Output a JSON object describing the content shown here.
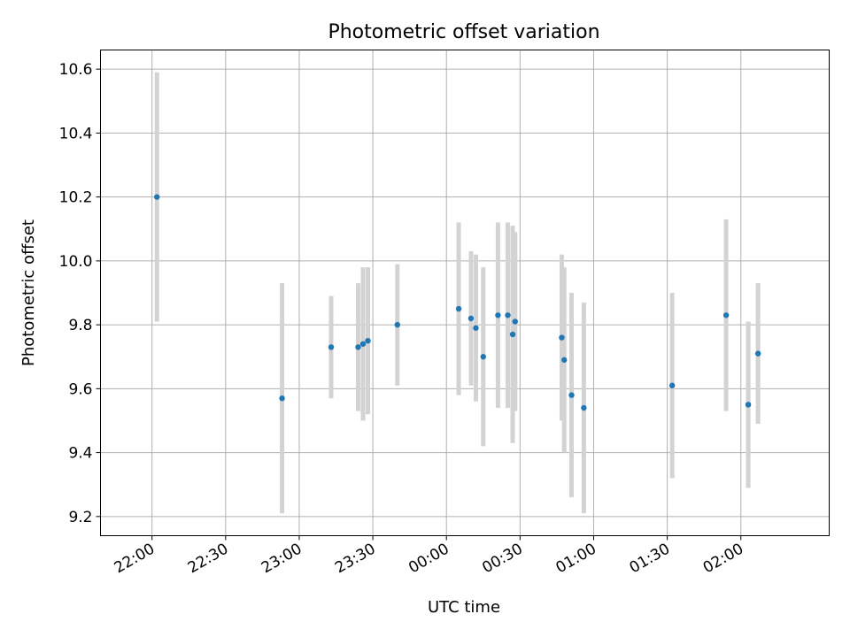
{
  "chart_data": {
    "type": "scatter",
    "title": "Photometric offset variation",
    "xlabel": "UTC time",
    "ylabel": "Photometric offset",
    "x_is_time": true,
    "xlim": [
      "21:39",
      "02:36"
    ],
    "ylim": [
      9.14,
      10.66
    ],
    "x_ticks": [
      "22:00",
      "22:30",
      "23:00",
      "23:30",
      "00:00",
      "00:30",
      "01:00",
      "01:30",
      "02:00"
    ],
    "y_ticks": [
      "9.2",
      "9.4",
      "9.6",
      "9.8",
      "10.0",
      "10.2",
      "10.4",
      "10.6"
    ],
    "grid": true,
    "marker_color": "#1f77b4",
    "errorbar_color": "#d3d3d3",
    "points": [
      {
        "t": "22:02",
        "y": 10.2,
        "err": 0.39
      },
      {
        "t": "22:53",
        "y": 9.57,
        "err": 0.36
      },
      {
        "t": "23:13",
        "y": 9.73,
        "err": 0.16
      },
      {
        "t": "23:24",
        "y": 9.73,
        "err": 0.2
      },
      {
        "t": "23:26",
        "y": 9.74,
        "err": 0.24
      },
      {
        "t": "23:28",
        "y": 9.75,
        "err": 0.23
      },
      {
        "t": "23:40",
        "y": 9.8,
        "err": 0.19
      },
      {
        "t": "00:05",
        "y": 9.85,
        "err": 0.27
      },
      {
        "t": "00:10",
        "y": 9.82,
        "err": 0.21
      },
      {
        "t": "00:12",
        "y": 9.79,
        "err": 0.23
      },
      {
        "t": "00:15",
        "y": 9.7,
        "err": 0.28
      },
      {
        "t": "00:21",
        "y": 9.83,
        "err": 0.29
      },
      {
        "t": "00:25",
        "y": 9.83,
        "err": 0.29
      },
      {
        "t": "00:27",
        "y": 9.77,
        "err": 0.34
      },
      {
        "t": "00:28",
        "y": 9.81,
        "err": 0.28
      },
      {
        "t": "00:47",
        "y": 9.76,
        "err": 0.26
      },
      {
        "t": "00:48",
        "y": 9.69,
        "err": 0.29
      },
      {
        "t": "00:51",
        "y": 9.58,
        "err": 0.32
      },
      {
        "t": "00:56",
        "y": 9.54,
        "err": 0.33
      },
      {
        "t": "01:32",
        "y": 9.61,
        "err": 0.29
      },
      {
        "t": "01:54",
        "y": 9.83,
        "err": 0.3
      },
      {
        "t": "02:03",
        "y": 9.55,
        "err": 0.26
      },
      {
        "t": "02:03",
        "y": 9.55,
        "err": 0.26
      },
      {
        "t": "02:07",
        "y": 9.71,
        "err": 0.22
      }
    ]
  }
}
